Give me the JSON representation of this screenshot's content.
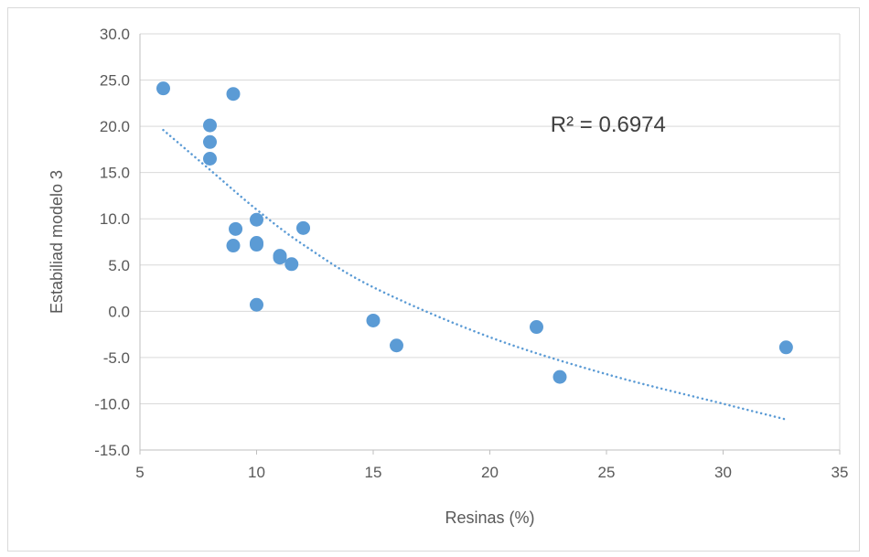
{
  "chart_data": {
    "type": "scatter",
    "title": "",
    "xlabel": "Resinas (%)",
    "ylabel": "Estabiliad modelo 3",
    "xlim": [
      5,
      35
    ],
    "ylim": [
      -15,
      30
    ],
    "x_ticks": [
      "5",
      "10",
      "15",
      "20",
      "25",
      "30",
      "35"
    ],
    "y_ticks": [
      "30.0",
      "25.0",
      "20.0",
      "15.0",
      "10.0",
      "5.0",
      "0.0",
      "-5.0",
      "-10.0",
      "-15.0"
    ],
    "grid": "horizontal",
    "marker_color": "#5b9bd5",
    "points": [
      {
        "x": 6,
        "y": 24.1
      },
      {
        "x": 9,
        "y": 23.5
      },
      {
        "x": 8,
        "y": 20.1
      },
      {
        "x": 8,
        "y": 18.3
      },
      {
        "x": 8,
        "y": 16.5
      },
      {
        "x": 10,
        "y": 9.9
      },
      {
        "x": 9.1,
        "y": 8.9
      },
      {
        "x": 12,
        "y": 9.0
      },
      {
        "x": 9,
        "y": 7.1
      },
      {
        "x": 10,
        "y": 7.4
      },
      {
        "x": 10,
        "y": 7.2
      },
      {
        "x": 11,
        "y": 6.0
      },
      {
        "x": 11,
        "y": 5.8
      },
      {
        "x": 11.5,
        "y": 5.1
      },
      {
        "x": 10,
        "y": 0.7
      },
      {
        "x": 15,
        "y": -1.0
      },
      {
        "x": 16,
        "y": -3.7
      },
      {
        "x": 22,
        "y": -1.7
      },
      {
        "x": 23,
        "y": -7.1
      },
      {
        "x": 32.7,
        "y": -3.9
      }
    ],
    "trendline": {
      "style": "dotted",
      "x_start": 6,
      "x_end": 32.7,
      "points": [
        {
          "x": 6,
          "y": 19.6
        },
        {
          "x": 8,
          "y": 15.3
        },
        {
          "x": 10,
          "y": 11.0
        },
        {
          "x": 12,
          "y": 7.2
        },
        {
          "x": 15,
          "y": 2.6
        },
        {
          "x": 20,
          "y": -2.8
        },
        {
          "x": 25,
          "y": -6.8
        },
        {
          "x": 30,
          "y": -10.0
        },
        {
          "x": 32.7,
          "y": -11.7
        }
      ]
    },
    "annotation": "R² = 0.6974",
    "annotation_pos": {
      "x": 22.6,
      "y": 19.4
    }
  }
}
